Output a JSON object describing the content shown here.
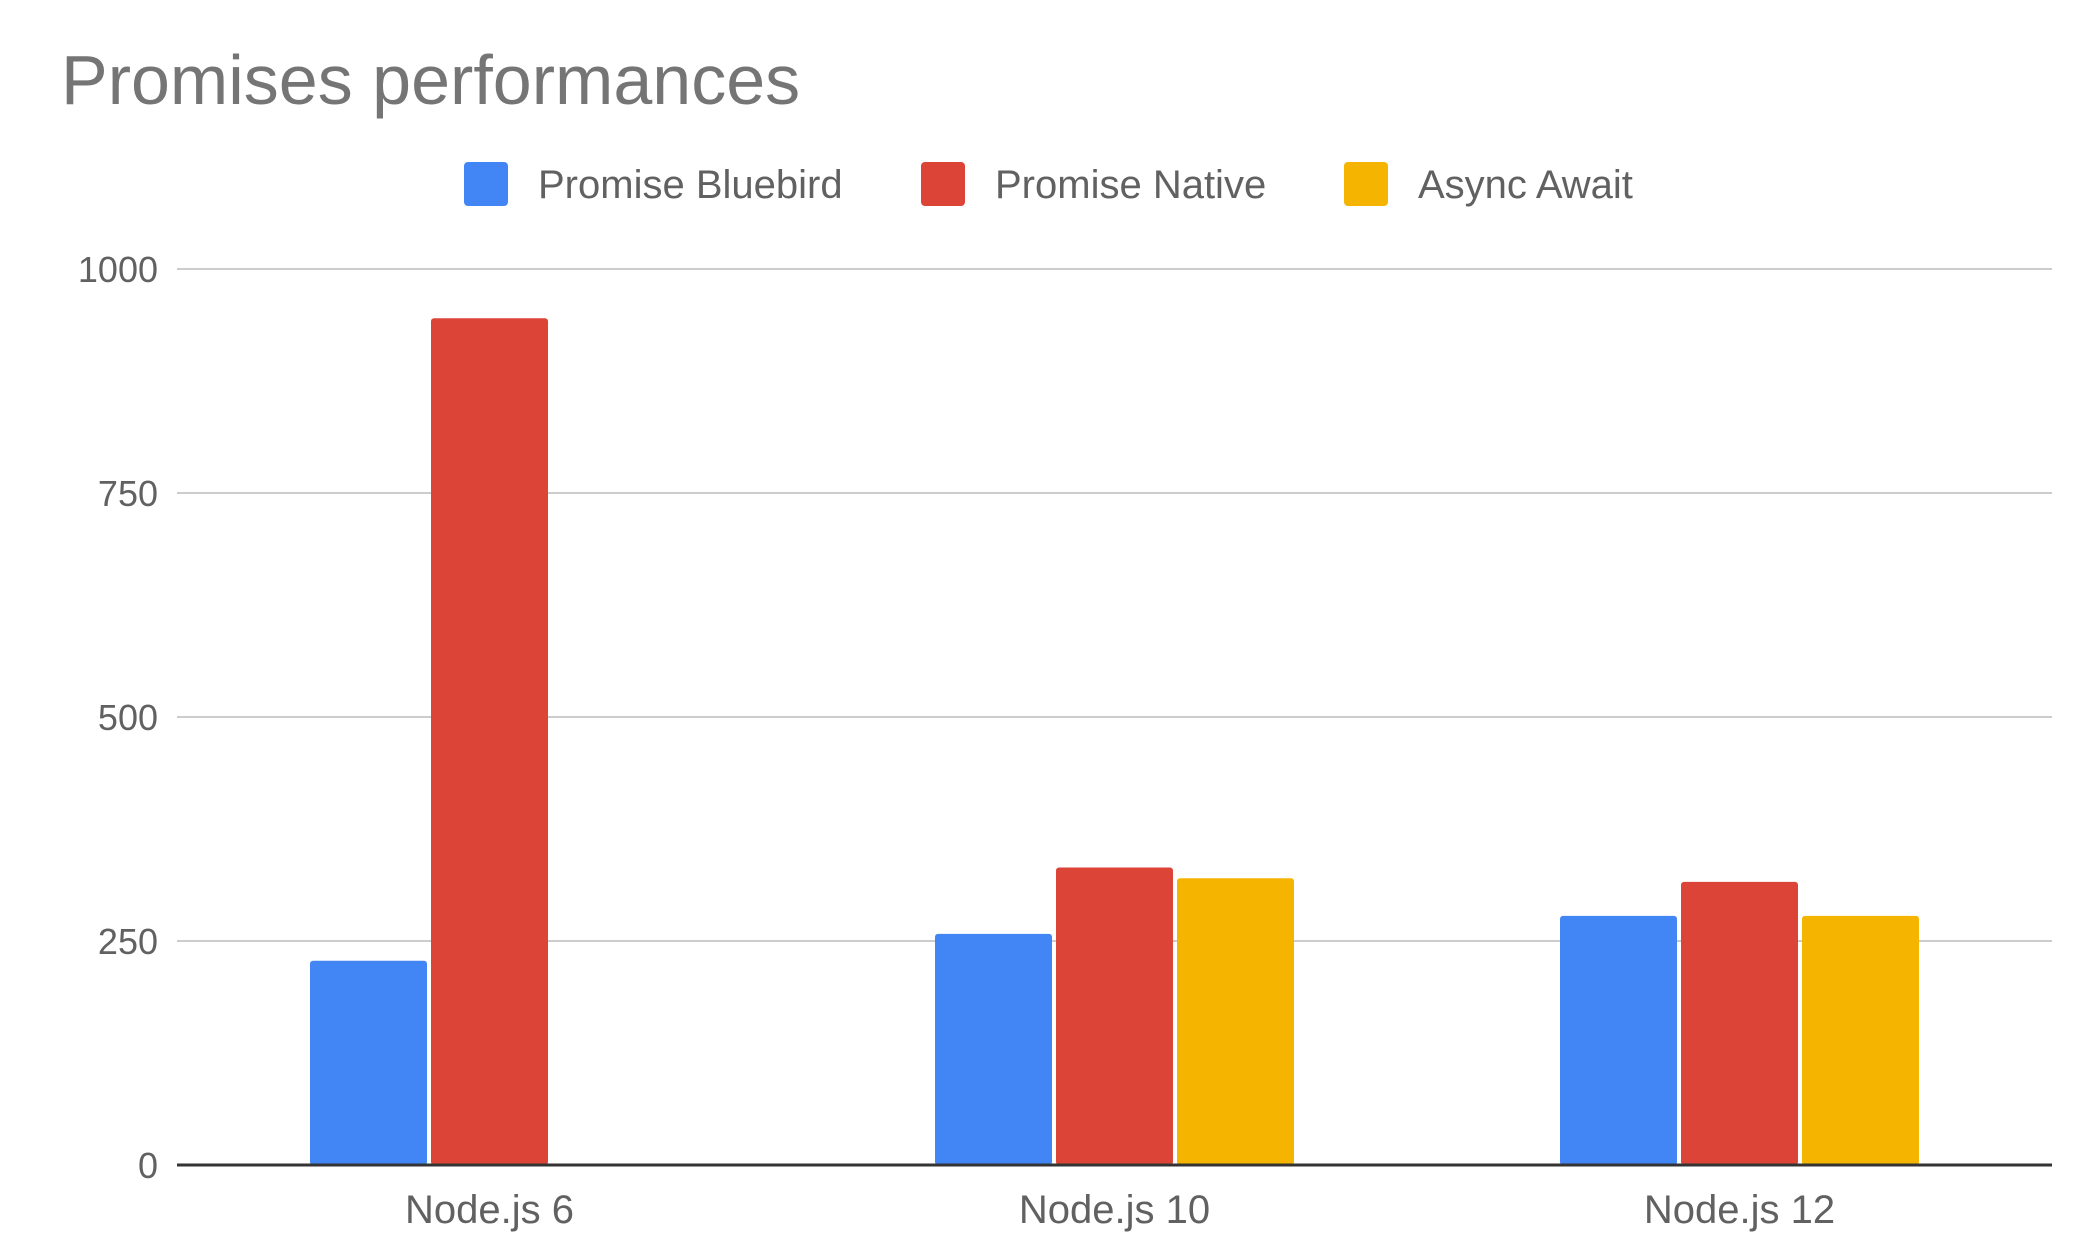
{
  "chart_data": {
    "type": "bar",
    "title": "Promises performances",
    "xlabel": "",
    "ylabel": "",
    "categories": [
      "Node.js 6",
      "Node.js 10",
      "Node.js 12"
    ],
    "series": [
      {
        "name": "Promise Bluebird",
        "color": "#4285F4",
        "values": [
          228,
          258,
          278
        ]
      },
      {
        "name": "Promise Native",
        "color": "#DB4437",
        "values": [
          945,
          332,
          316
        ]
      },
      {
        "name": "Async Await",
        "color": "#F4B400",
        "values": [
          null,
          320,
          278
        ]
      }
    ],
    "ylim": [
      0,
      1000
    ],
    "yticks": [
      "0",
      "250",
      "500",
      "750",
      "1000"
    ],
    "grid": true,
    "legend_position": "top-center"
  }
}
